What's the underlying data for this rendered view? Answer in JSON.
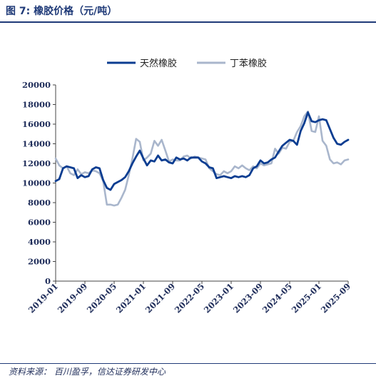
{
  "header": {
    "title": "图 7:  橡胶价格（元/吨）"
  },
  "footer": {
    "source": "资料来源：  百川盈孚，信达证券研发中心"
  },
  "chart_data": {
    "type": "line",
    "title": "橡胶价格（元/吨）",
    "legend_position": "top-center",
    "ylim": [
      0,
      20000
    ],
    "y_ticks": [
      0,
      2000,
      4000,
      6000,
      8000,
      10000,
      12000,
      14000,
      16000,
      18000,
      20000
    ],
    "x_range": [
      "2019-01",
      "2025-09"
    ],
    "x_ticks": [
      "2019-01",
      "2019-09",
      "2020-05",
      "2021-01",
      "2021-09",
      "2022-05",
      "2023-01",
      "2023-09",
      "2024-05",
      "2025-01",
      "2025-09"
    ],
    "grid": false,
    "series": [
      {
        "name": "天然橡胶",
        "color": "#0b3d91",
        "x": [
          "2019-01",
          "2019-02",
          "2019-03",
          "2019-04",
          "2019-05",
          "2019-06",
          "2019-07",
          "2019-08",
          "2019-09",
          "2019-10",
          "2019-11",
          "2019-12",
          "2020-01",
          "2020-02",
          "2020-03",
          "2020-04",
          "2020-05",
          "2020-06",
          "2020-07",
          "2020-08",
          "2020-09",
          "2020-10",
          "2020-11",
          "2020-12",
          "2021-01",
          "2021-02",
          "2021-03",
          "2021-04",
          "2021-05",
          "2021-06",
          "2021-07",
          "2021-08",
          "2021-09",
          "2021-10",
          "2021-11",
          "2021-12",
          "2022-01",
          "2022-02",
          "2022-03",
          "2022-04",
          "2022-05",
          "2022-06",
          "2022-07",
          "2022-08",
          "2022-09",
          "2022-10",
          "2022-11",
          "2022-12",
          "2023-01",
          "2023-02",
          "2023-03",
          "2023-04",
          "2023-05",
          "2023-06",
          "2023-07",
          "2023-08",
          "2023-09",
          "2023-10",
          "2023-11",
          "2023-12",
          "2024-01",
          "2024-02",
          "2024-03",
          "2024-04",
          "2024-05",
          "2024-06",
          "2024-07",
          "2024-08",
          "2024-09",
          "2024-10",
          "2024-11",
          "2024-12",
          "2025-01",
          "2025-02",
          "2025-03",
          "2025-04",
          "2025-05",
          "2025-06",
          "2025-07",
          "2025-08",
          "2025-09"
        ],
        "values": [
          10200,
          10400,
          11500,
          11700,
          11600,
          11500,
          10500,
          10800,
          10600,
          10700,
          11400,
          11600,
          11500,
          10300,
          9500,
          9300,
          9900,
          10100,
          10300,
          10600,
          11200,
          12000,
          12700,
          13300,
          12500,
          11800,
          12300,
          12200,
          12800,
          12300,
          12400,
          12100,
          12000,
          12600,
          12400,
          12500,
          12300,
          12600,
          12600,
          12600,
          12200,
          12000,
          11600,
          11500,
          10500,
          10600,
          10700,
          10600,
          10500,
          10700,
          10600,
          10700,
          10600,
          10800,
          11500,
          11700,
          12300,
          12000,
          12100,
          12400,
          12600,
          13200,
          13800,
          14100,
          14400,
          14300,
          13900,
          15300,
          16100,
          17200,
          16300,
          16200,
          16400,
          16500,
          16400,
          15500,
          14600,
          14000,
          13900,
          14200,
          14400
        ]
      },
      {
        "name": "丁苯橡胶",
        "color": "#a9b6cc",
        "x": [
          "2019-01",
          "2019-02",
          "2019-03",
          "2019-04",
          "2019-05",
          "2019-06",
          "2019-07",
          "2019-08",
          "2019-09",
          "2019-10",
          "2019-11",
          "2019-12",
          "2020-01",
          "2020-02",
          "2020-03",
          "2020-04",
          "2020-05",
          "2020-06",
          "2020-07",
          "2020-08",
          "2020-09",
          "2020-10",
          "2020-11",
          "2020-12",
          "2021-01",
          "2021-02",
          "2021-03",
          "2021-04",
          "2021-05",
          "2021-06",
          "2021-07",
          "2021-08",
          "2021-09",
          "2021-10",
          "2021-11",
          "2021-12",
          "2022-01",
          "2022-02",
          "2022-03",
          "2022-04",
          "2022-05",
          "2022-06",
          "2022-07",
          "2022-08",
          "2022-09",
          "2022-10",
          "2022-11",
          "2022-12",
          "2023-01",
          "2023-02",
          "2023-03",
          "2023-04",
          "2023-05",
          "2023-06",
          "2023-07",
          "2023-08",
          "2023-09",
          "2023-10",
          "2023-11",
          "2023-12",
          "2024-01",
          "2024-02",
          "2024-03",
          "2024-04",
          "2024-05",
          "2024-06",
          "2024-07",
          "2024-08",
          "2024-09",
          "2024-10",
          "2024-11",
          "2024-12",
          "2025-01",
          "2025-02",
          "2025-03",
          "2025-04",
          "2025-05",
          "2025-06",
          "2025-07",
          "2025-08",
          "2025-09"
        ],
        "values": [
          12500,
          11800,
          11500,
          11700,
          11000,
          10800,
          11400,
          10900,
          11100,
          11000,
          11300,
          11200,
          11000,
          10200,
          7800,
          7800,
          7700,
          7800,
          8500,
          9300,
          10800,
          12500,
          14500,
          14200,
          12300,
          12600,
          13000,
          14300,
          13800,
          14400,
          13300,
          12200,
          12400,
          12300,
          12300,
          12700,
          12800,
          12500,
          12700,
          12600,
          12500,
          12400,
          11500,
          11200,
          10900,
          10800,
          11200,
          11000,
          11200,
          11700,
          11500,
          11800,
          11500,
          11300,
          11700,
          11500,
          12000,
          11800,
          11900,
          12000,
          13500,
          13000,
          13600,
          13500,
          14200,
          14300,
          15200,
          15800,
          16800,
          17300,
          15300,
          15200,
          16800,
          14300,
          13800,
          12400,
          12000,
          12100,
          11900,
          12300,
          12400
        ]
      }
    ]
  }
}
